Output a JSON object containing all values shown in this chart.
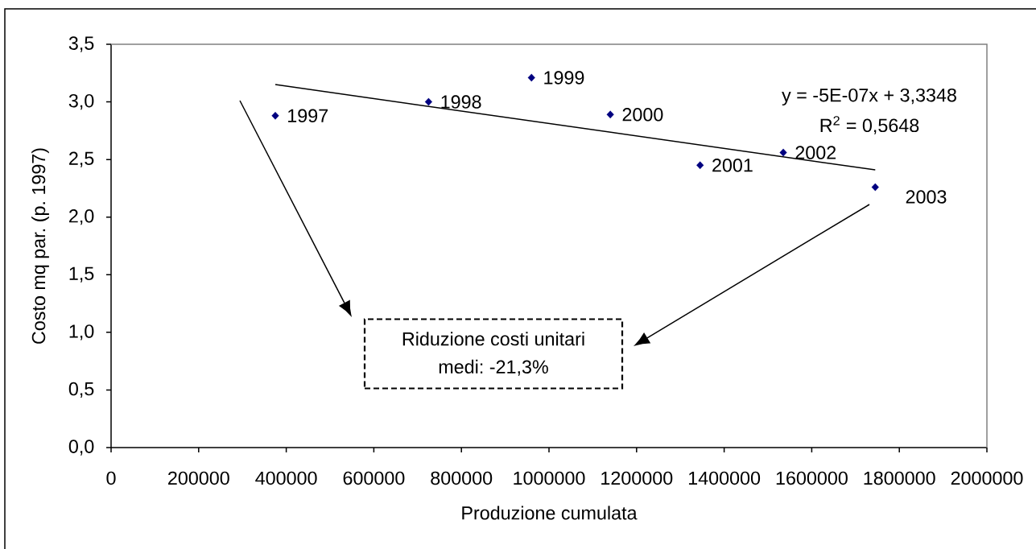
{
  "chart_data": {
    "type": "scatter",
    "xlabel": "Produzione cumulata",
    "ylabel": "Costo mq par. (p. 1997)",
    "x": [
      375000,
      725000,
      960000,
      1140000,
      1345000,
      1535000,
      1745000
    ],
    "series": [
      {
        "color": "#000080",
        "values": [
          2.88,
          3.0,
          3.21,
          2.89,
          2.45,
          2.56,
          2.26
        ]
      },
      {
        "type": "line",
        "color": "#000000",
        "x": [
          375000,
          1745000
        ],
        "values": [
          3.15,
          2.41
        ],
        "marker": "none"
      }
    ],
    "marker": "diamond",
    "xlim": [
      0,
      2000000
    ],
    "xticks": [
      0,
      200000,
      400000,
      600000,
      800000,
      1000000,
      1200000,
      1400000,
      1600000,
      1800000,
      2000000
    ],
    "ylim": [
      0,
      3.5
    ],
    "yticks": [
      {
        "value": 0,
        "label": "0,0"
      },
      {
        "value": 0.5,
        "label": "0,5"
      },
      {
        "value": 1,
        "label": "1,0"
      },
      {
        "value": 1.5,
        "label": "1,5"
      },
      {
        "value": 2,
        "label": "2,0"
      },
      {
        "value": 2.5,
        "label": "2,5"
      },
      {
        "value": 3,
        "label": "3,0"
      },
      {
        "value": 3.5,
        "label": "3,5"
      }
    ],
    "annotations": [
      {
        "text": "1997",
        "x": 375000,
        "y": 2.88
      },
      {
        "text": "1998",
        "x": 725000,
        "y": 3.0
      },
      {
        "text": "1999",
        "x": 960000,
        "y": 3.21
      },
      {
        "text": "2000",
        "x": 1140000,
        "y": 2.89
      },
      {
        "text": "2001",
        "x": 1345000,
        "y": 2.45
      },
      {
        "text": "2002",
        "x": 1535000,
        "y": 2.56
      },
      {
        "text": "2003",
        "x": 1745000,
        "y": 2.26
      },
      "y = -5E-07x + 3,3348",
      "R$^{2}$ = 0,5648",
      "Riduzione costi unitari medi: -21,3%"
    ]
  }
}
